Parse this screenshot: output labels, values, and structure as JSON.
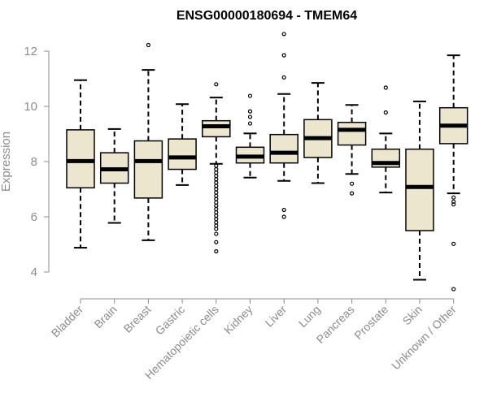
{
  "chart_data": {
    "type": "box",
    "title": "ENSG00000180694 - TMEM64",
    "ylabel": "Expression",
    "xlabel": "",
    "ylim": [
      3.2,
      12.8
    ],
    "yticks": [
      4,
      6,
      8,
      10,
      12
    ],
    "box_fill": "#ede6cf",
    "box_stroke": "#000000",
    "categories": [
      "Bladder",
      "Brain",
      "Breast",
      "Gastric",
      "Hematopoietic cells",
      "Kidney",
      "Liver",
      "Lung",
      "Pancreas",
      "Prostate",
      "Skin",
      "Unknown / Other"
    ],
    "boxes": [
      {
        "lw": 4.88,
        "q1": 7.05,
        "median": 8.02,
        "q3": 9.15,
        "uw": 10.95,
        "outliers": []
      },
      {
        "lw": 5.78,
        "q1": 7.22,
        "median": 7.72,
        "q3": 8.32,
        "uw": 9.18,
        "outliers": []
      },
      {
        "lw": 5.15,
        "q1": 6.68,
        "median": 8.02,
        "q3": 8.75,
        "uw": 11.32,
        "outliers": [
          12.22
        ]
      },
      {
        "lw": 7.15,
        "q1": 7.72,
        "median": 8.15,
        "q3": 8.82,
        "uw": 10.08,
        "outliers": []
      },
      {
        "lw": 7.92,
        "q1": 8.9,
        "median": 9.28,
        "q3": 9.48,
        "uw": 10.32,
        "outliers": [
          10.8,
          7.85,
          7.72,
          7.6,
          7.48,
          7.36,
          7.24,
          7.12,
          7.0,
          6.88,
          6.76,
          6.64,
          6.52,
          6.4,
          6.28,
          6.16,
          6.04,
          5.92,
          5.8,
          5.68,
          5.56,
          5.38,
          5.08,
          4.75
        ]
      },
      {
        "lw": 7.42,
        "q1": 7.95,
        "median": 8.18,
        "q3": 8.52,
        "uw": 9.02,
        "outliers": [
          10.38,
          9.82,
          9.62,
          9.38
        ]
      },
      {
        "lw": 7.3,
        "q1": 7.95,
        "median": 8.32,
        "q3": 8.98,
        "uw": 10.45,
        "outliers": [
          12.62,
          11.85,
          11.05,
          6.25,
          6.0
        ]
      },
      {
        "lw": 7.22,
        "q1": 8.15,
        "median": 8.85,
        "q3": 9.52,
        "uw": 10.85,
        "outliers": []
      },
      {
        "lw": 7.55,
        "q1": 8.6,
        "median": 9.15,
        "q3": 9.42,
        "uw": 10.05,
        "outliers": [
          7.2,
          6.85
        ]
      },
      {
        "lw": 6.88,
        "q1": 7.8,
        "median": 7.95,
        "q3": 8.45,
        "uw": 9.02,
        "outliers": [
          10.68,
          9.78
        ]
      },
      {
        "lw": 3.72,
        "q1": 5.5,
        "median": 7.08,
        "q3": 8.45,
        "uw": 10.18,
        "outliers": []
      },
      {
        "lw": 6.85,
        "q1": 8.65,
        "median": 9.3,
        "q3": 9.95,
        "uw": 11.85,
        "outliers": [
          6.7,
          6.55,
          6.45,
          5.02,
          3.38
        ]
      }
    ]
  }
}
